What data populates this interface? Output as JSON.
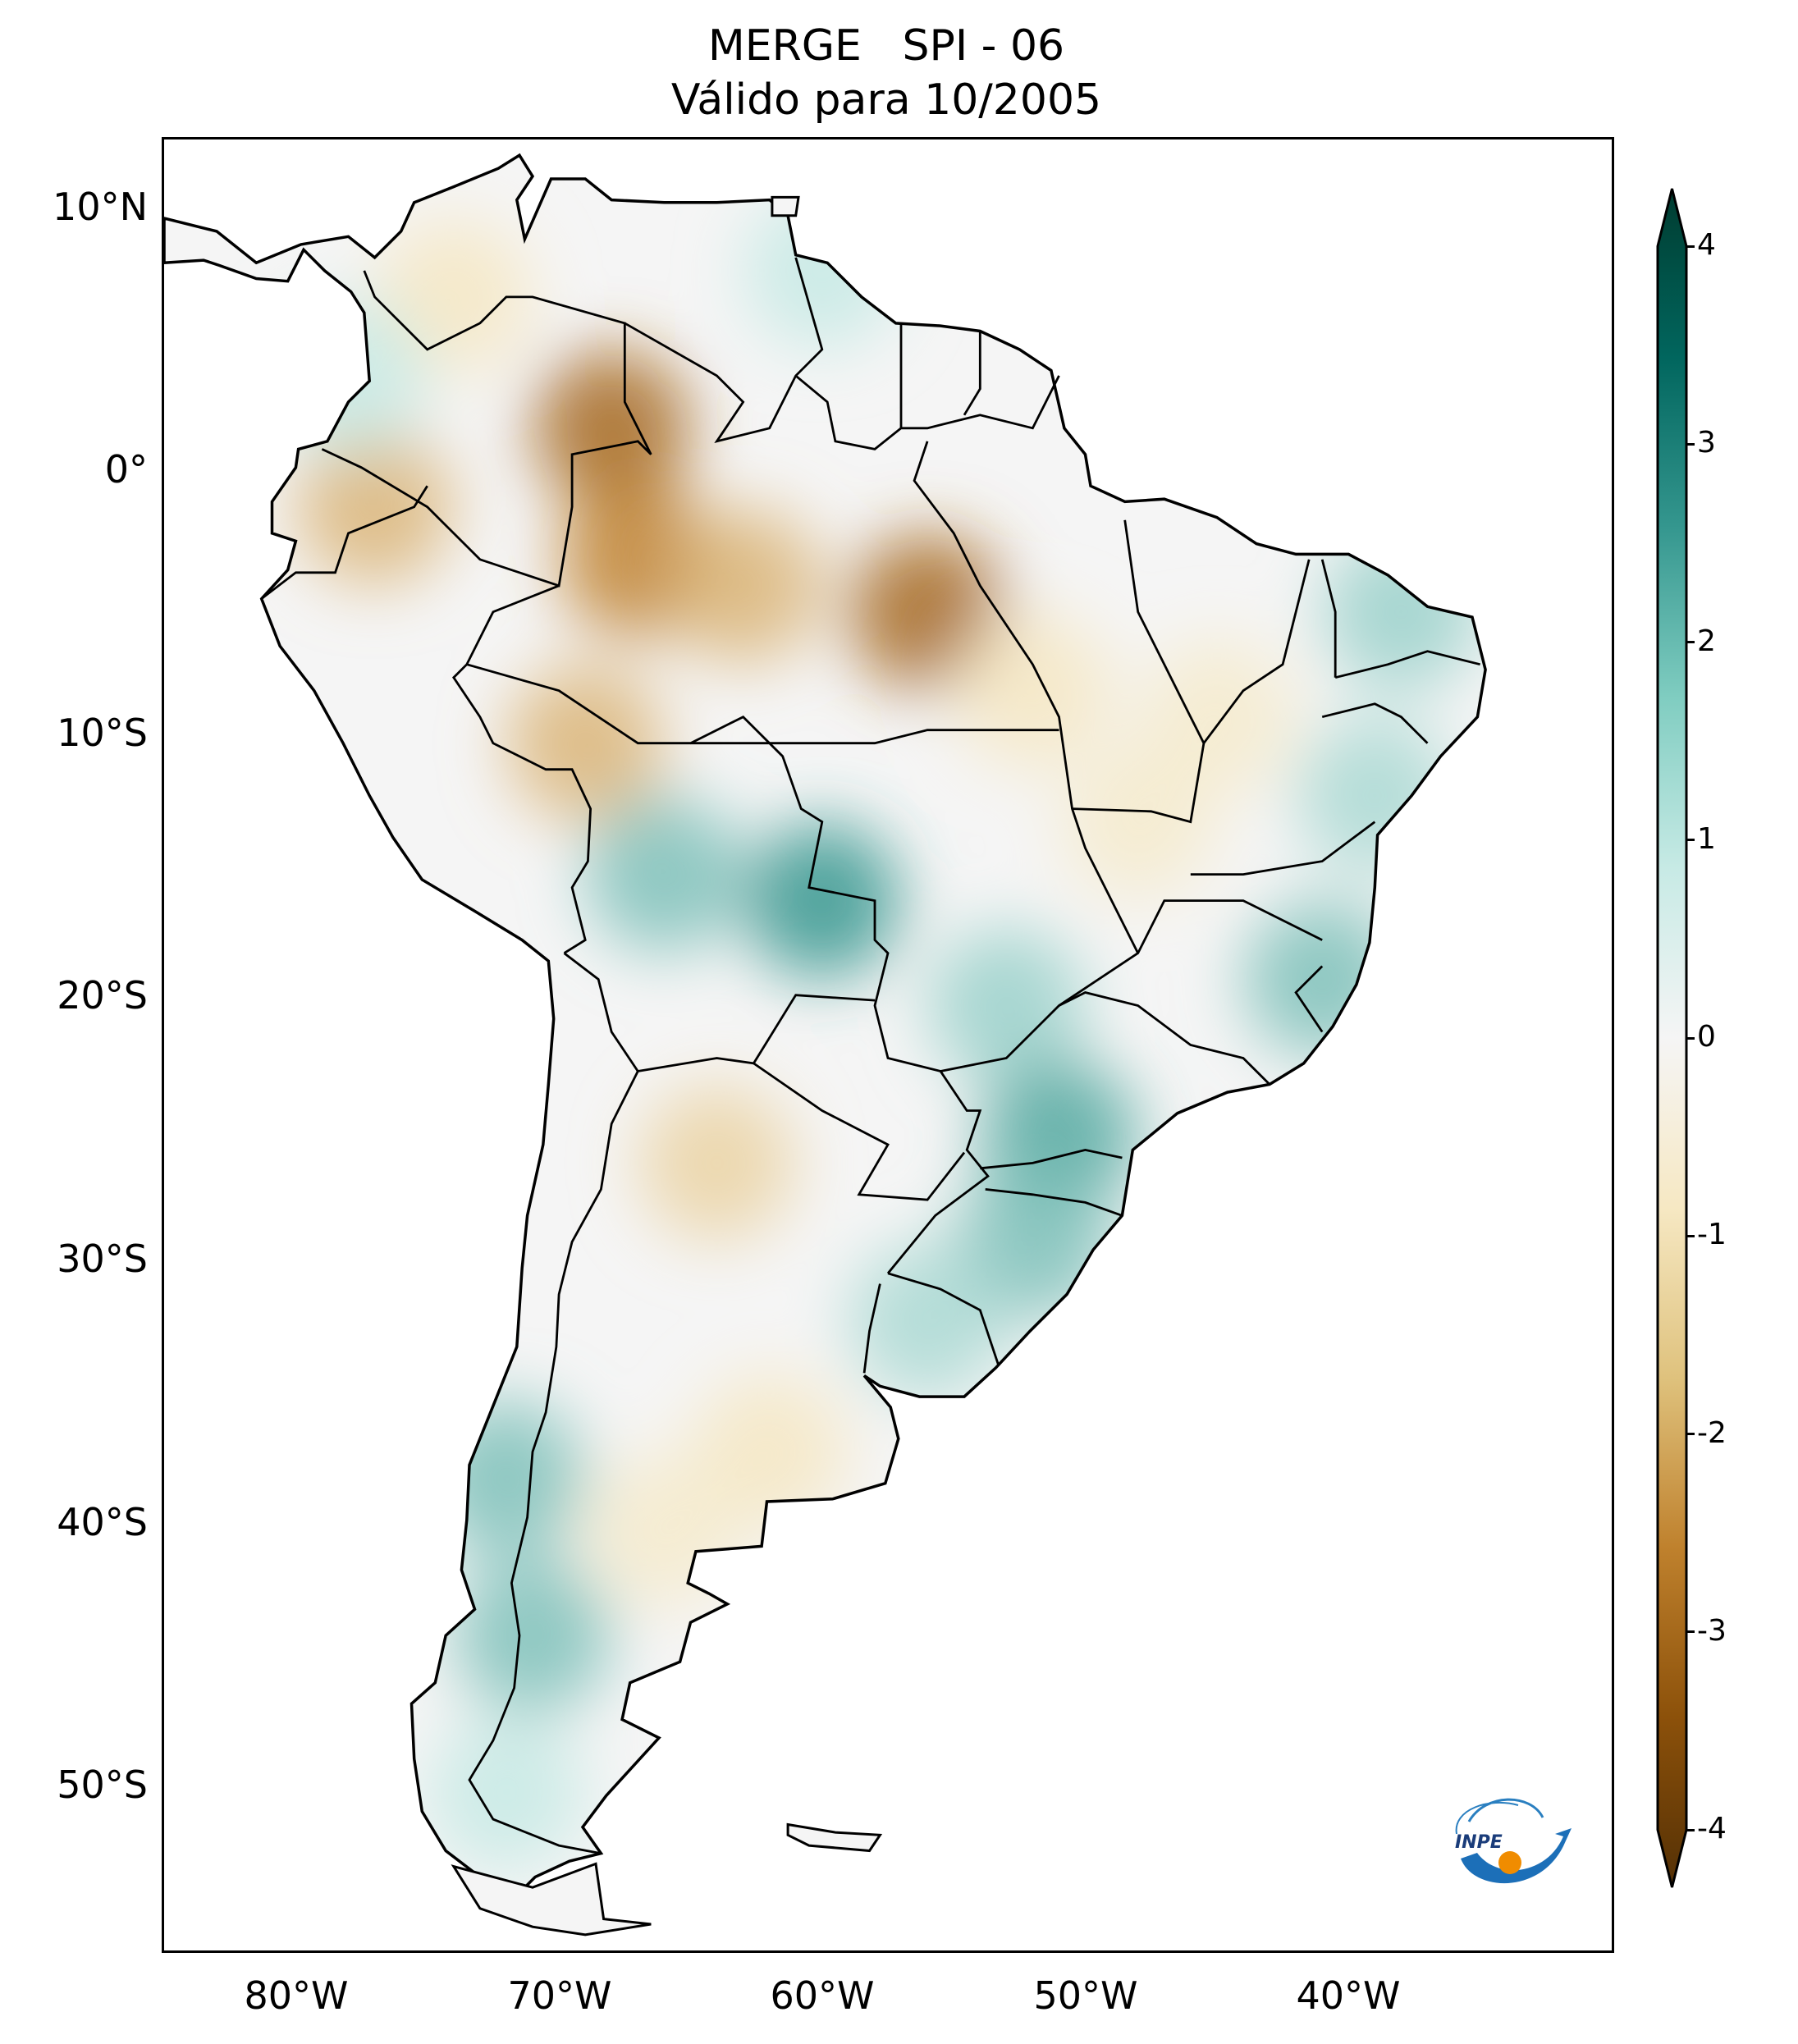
{
  "title": {
    "line1": "MERGE   SPI - 06",
    "line2": "Válido para 10/2005"
  },
  "lat_labels": [
    "10°N",
    "0°",
    "10°S",
    "20°S",
    "30°S",
    "40°S",
    "50°S"
  ],
  "lon_labels": [
    "80°W",
    "70°W",
    "60°W",
    "50°W",
    "40°W"
  ],
  "colorbar": {
    "ticks": [
      "4",
      "3",
      "2",
      "1",
      "0",
      "-1",
      "-2",
      "-3",
      "-4"
    ],
    "colors": [
      "#003c30",
      "#01665e",
      "#35978f",
      "#80cdc1",
      "#c7eae5",
      "#f5f5f5",
      "#f6e8c3",
      "#dfc27d",
      "#bf812d",
      "#8c510a",
      "#543005"
    ]
  },
  "logo": {
    "text": "INPE"
  },
  "chart_data": {
    "type": "heatmap",
    "variable": "SPI - 06",
    "xlim": [
      -85,
      -30
    ],
    "ylim": [
      -56,
      13
    ],
    "xticks": [
      -80,
      -70,
      -60,
      -50,
      -40
    ],
    "yticks": [
      10,
      0,
      -10,
      -20,
      -30,
      -40,
      -50
    ],
    "vmin": -4,
    "vmax": 4,
    "cmap": "BrBG",
    "colorbar_extend": "both",
    "anomalies": [
      {
        "lon": -68,
        "lat": 2,
        "value": -2.5
      },
      {
        "lon": -67,
        "lat": -3,
        "value": -2.0
      },
      {
        "lon": -56,
        "lat": -5,
        "value": -2.5
      },
      {
        "lon": -63,
        "lat": -4,
        "value": -1.5
      },
      {
        "lon": -77,
        "lat": -1,
        "value": -1.5
      },
      {
        "lon": -69,
        "lat": -10,
        "value": -1.5
      },
      {
        "lon": -74,
        "lat": 7,
        "value": -1.0
      },
      {
        "lon": -52,
        "lat": -8,
        "value": -1.0
      },
      {
        "lon": -45,
        "lat": -9,
        "value": -0.8
      },
      {
        "lon": -48,
        "lat": -13,
        "value": -0.8
      },
      {
        "lon": -60,
        "lat": -16,
        "value": 2.0
      },
      {
        "lon": -66,
        "lat": -15,
        "value": 1.5
      },
      {
        "lon": -53,
        "lat": -20,
        "value": 1.3
      },
      {
        "lon": -51,
        "lat": -25,
        "value": 1.8
      },
      {
        "lon": -52,
        "lat": -29,
        "value": 1.5
      },
      {
        "lon": -56,
        "lat": -32,
        "value": 1.2
      },
      {
        "lon": -41,
        "lat": -19,
        "value": 1.5
      },
      {
        "lon": -39,
        "lat": -12,
        "value": 1.2
      },
      {
        "lon": -38,
        "lat": -5,
        "value": 1.3
      },
      {
        "lon": -64,
        "lat": -26,
        "value": -1.2
      },
      {
        "lon": -62,
        "lat": -37,
        "value": -1.0
      },
      {
        "lon": -66,
        "lat": -40,
        "value": -0.8
      },
      {
        "lon": -72,
        "lat": -38,
        "value": 1.5
      },
      {
        "lon": -71,
        "lat": -44,
        "value": 1.5
      },
      {
        "lon": -72,
        "lat": -50,
        "value": 1.0
      },
      {
        "lon": -78,
        "lat": 4,
        "value": 1.0
      },
      {
        "lon": -60,
        "lat": 8,
        "value": 1.0
      }
    ]
  }
}
